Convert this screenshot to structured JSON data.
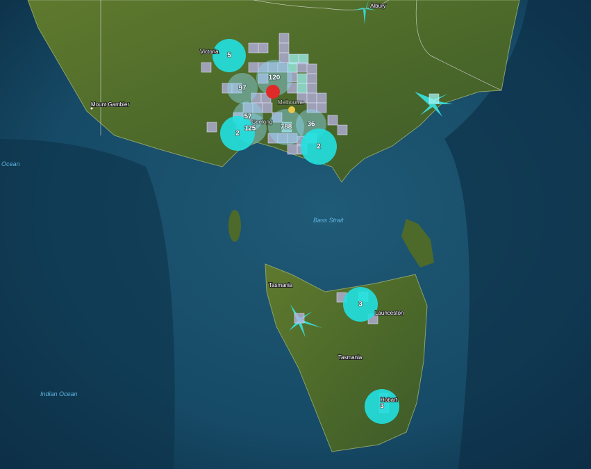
{
  "map": {
    "labels": {
      "albury": "Albury",
      "victoria": "Victoria",
      "mount_gambier": "Mount Gambier",
      "southern_ocean": "Ocean",
      "indian_ocean": "Indian Ocean",
      "bass_strait": "Bass Strait",
      "tasmania_state": "Tasmania",
      "tasmania_island": "Tasmania",
      "launceston": "Launceston",
      "hobart": "Hobart",
      "melbourne": "Melbourne",
      "geelong": "Geelong"
    },
    "clusters": [
      5,
      120,
      97,
      57,
      125,
      2,
      788,
      36,
      2,
      3,
      3
    ]
  }
}
